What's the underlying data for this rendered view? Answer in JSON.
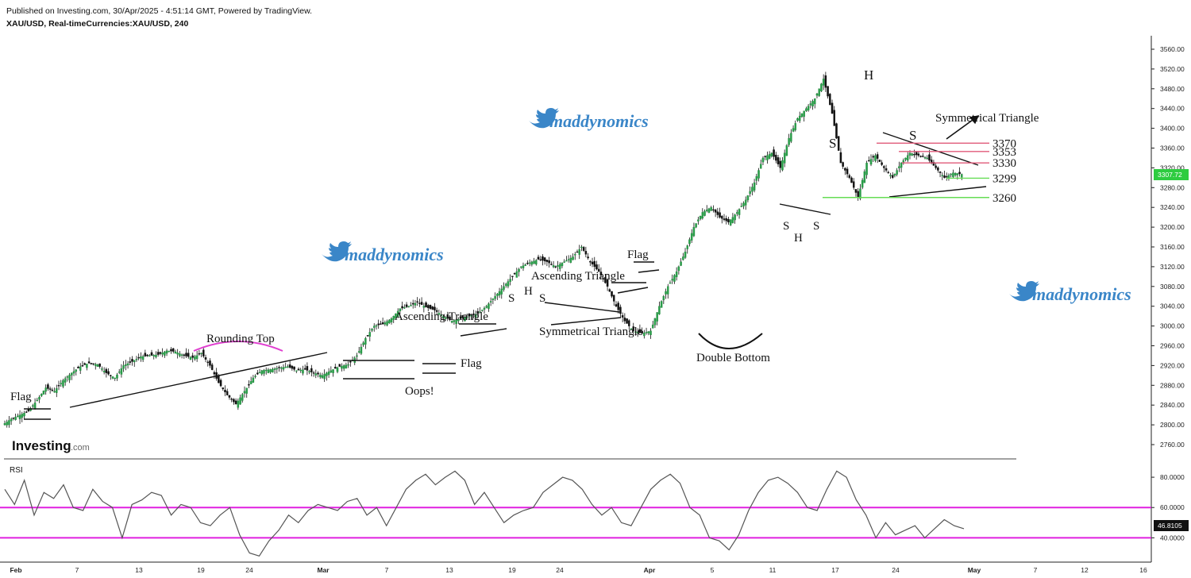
{
  "header": {
    "published": "Published on Investing.com, 30/Apr/2025 - 4:51:14 GMT, Powered by TradingView.",
    "symbol": "XAU/USD, Real-timeCurrencies:XAU/USD, 240"
  },
  "watermarks": [
    "maddynomics",
    "maddynomics",
    "maddynomics"
  ],
  "logo": {
    "main": "Investing",
    "suffix": ".com"
  },
  "chart_data": [
    {
      "type": "candlestick",
      "title": "XAU/USD, Real-timeCurrencies:XAU/USD, 240",
      "x_ticks": [
        "Feb",
        "7",
        "13",
        "19",
        "24",
        "Mar",
        "7",
        "13",
        "19",
        "24",
        "Apr",
        "5",
        "11",
        "17",
        "24",
        "May",
        "7",
        "12",
        "16"
      ],
      "y_ticks": [
        "3560.00",
        "3520.00",
        "3480.00",
        "3440.00",
        "3400.00",
        "3360.00",
        "3320.00",
        "3280.00",
        "3240.00",
        "3200.00",
        "3160.00",
        "3120.00",
        "3080.00",
        "3040.00",
        "3000.00",
        "2960.00",
        "2920.00",
        "2880.00",
        "2840.00",
        "2800.00",
        "2760.00"
      ],
      "ylim": [
        2740,
        3580
      ],
      "last_price": "3307.72",
      "price_path": [
        [
          0,
          2800
        ],
        [
          4,
          2812
        ],
        [
          8,
          2820
        ],
        [
          12,
          2828
        ],
        [
          16,
          2850
        ],
        [
          20,
          2875
        ],
        [
          24,
          2868
        ],
        [
          28,
          2890
        ],
        [
          32,
          2905
        ],
        [
          36,
          2918
        ],
        [
          40,
          2925
        ],
        [
          44,
          2922
        ],
        [
          48,
          2905
        ],
        [
          52,
          2895
        ],
        [
          56,
          2920
        ],
        [
          60,
          2928
        ],
        [
          64,
          2938
        ],
        [
          68,
          2940
        ],
        [
          72,
          2942
        ],
        [
          76,
          2950
        ],
        [
          80,
          2948
        ],
        [
          84,
          2940
        ],
        [
          88,
          2936
        ],
        [
          92,
          2945
        ],
        [
          96,
          2920
        ],
        [
          100,
          2885
        ],
        [
          104,
          2860
        ],
        [
          108,
          2842
        ],
        [
          112,
          2868
        ],
        [
          116,
          2895
        ],
        [
          120,
          2910
        ],
        [
          124,
          2912
        ],
        [
          128,
          2915
        ],
        [
          132,
          2918
        ],
        [
          136,
          2910
        ],
        [
          140,
          2912
        ],
        [
          144,
          2905
        ],
        [
          148,
          2900
        ],
        [
          152,
          2910
        ],
        [
          156,
          2918
        ],
        [
          160,
          2922
        ],
        [
          164,
          2940
        ],
        [
          168,
          2975
        ],
        [
          172,
          3000
        ],
        [
          176,
          3004
        ],
        [
          180,
          3015
        ],
        [
          184,
          3035
        ],
        [
          188,
          3040
        ],
        [
          192,
          3048
        ],
        [
          196,
          3038
        ],
        [
          200,
          3032
        ],
        [
          204,
          3020
        ],
        [
          208,
          3010
        ],
        [
          212,
          3015
        ],
        [
          216,
          3020
        ],
        [
          220,
          3025
        ],
        [
          224,
          3040
        ],
        [
          228,
          3060
        ],
        [
          232,
          3080
        ],
        [
          236,
          3100
        ],
        [
          240,
          3120
        ],
        [
          244,
          3128
        ],
        [
          248,
          3135
        ],
        [
          252,
          3130
        ],
        [
          256,
          3120
        ],
        [
          260,
          3130
        ],
        [
          264,
          3140
        ],
        [
          268,
          3160
        ],
        [
          272,
          3130
        ],
        [
          276,
          3110
        ],
        [
          280,
          3080
        ],
        [
          284,
          3040
        ],
        [
          288,
          3010
        ],
        [
          292,
          2990
        ],
        [
          296,
          2985
        ],
        [
          300,
          2990
        ],
        [
          304,
          3040
        ],
        [
          308,
          3080
        ],
        [
          312,
          3110
        ],
        [
          316,
          3150
        ],
        [
          320,
          3200
        ],
        [
          324,
          3230
        ],
        [
          328,
          3240
        ],
        [
          332,
          3220
        ],
        [
          336,
          3210
        ],
        [
          340,
          3230
        ],
        [
          344,
          3255
        ],
        [
          348,
          3290
        ],
        [
          352,
          3340
        ],
        [
          356,
          3350
        ],
        [
          360,
          3320
        ],
        [
          364,
          3380
        ],
        [
          368,
          3420
        ],
        [
          372,
          3440
        ],
        [
          376,
          3460
        ],
        [
          380,
          3500
        ],
        [
          384,
          3430
        ],
        [
          388,
          3330
        ],
        [
          392,
          3300
        ],
        [
          396,
          3260
        ],
        [
          400,
          3330
        ],
        [
          404,
          3345
        ],
        [
          408,
          3320
        ],
        [
          412,
          3300
        ],
        [
          416,
          3330
        ],
        [
          420,
          3350
        ],
        [
          424,
          3345
        ],
        [
          428,
          3340
        ],
        [
          432,
          3320
        ],
        [
          436,
          3300
        ],
        [
          440,
          3310
        ],
        [
          444,
          3307
        ]
      ],
      "annotations": [
        "Flag",
        "Rounding Top",
        "Oops!",
        "Flag",
        "Ascending Triangle",
        "S",
        "H",
        "S",
        "Symmetrical Triangle",
        "Ascending Triangle",
        "Flag",
        "Double Bottom",
        "S",
        "H",
        "S",
        "S",
        "H",
        "S",
        "Symmetrical Triangle"
      ],
      "levels": [
        {
          "label": "3370",
          "value": 3370,
          "color": "#e05a7a"
        },
        {
          "label": "3353",
          "value": 3353,
          "color": "#e05a7a"
        },
        {
          "label": "3330",
          "value": 3330,
          "color": "#e05a7a"
        },
        {
          "label": "3299",
          "value": 3299,
          "color": "#66dd55"
        },
        {
          "label": "3260",
          "value": 3260,
          "color": "#66dd55"
        }
      ]
    },
    {
      "type": "line",
      "title": "RSI",
      "y_ticks": [
        "80.0000",
        "60.0000",
        "40.0000"
      ],
      "ylim": [
        25,
        90
      ],
      "last_value": "46.8105",
      "bands": [
        60,
        40
      ],
      "values": [
        72,
        62,
        78,
        55,
        70,
        66,
        75,
        60,
        58,
        72,
        64,
        60,
        40,
        62,
        65,
        70,
        68,
        55,
        62,
        60,
        50,
        48,
        55,
        60,
        42,
        30,
        28,
        38,
        45,
        55,
        50,
        58,
        62,
        60,
        58,
        64,
        66,
        55,
        60,
        48,
        60,
        72,
        78,
        82,
        75,
        80,
        84,
        78,
        62,
        70,
        60,
        50,
        55,
        58,
        60,
        70,
        75,
        80,
        78,
        72,
        62,
        55,
        60,
        50,
        48,
        60,
        72,
        78,
        82,
        76,
        60,
        55,
        40,
        38,
        32,
        42,
        58,
        70,
        78,
        80,
        76,
        70,
        60,
        58,
        72,
        84,
        80,
        65,
        55,
        40,
        50,
        42,
        45,
        48,
        40,
        46,
        52,
        48,
        46
      ]
    }
  ]
}
